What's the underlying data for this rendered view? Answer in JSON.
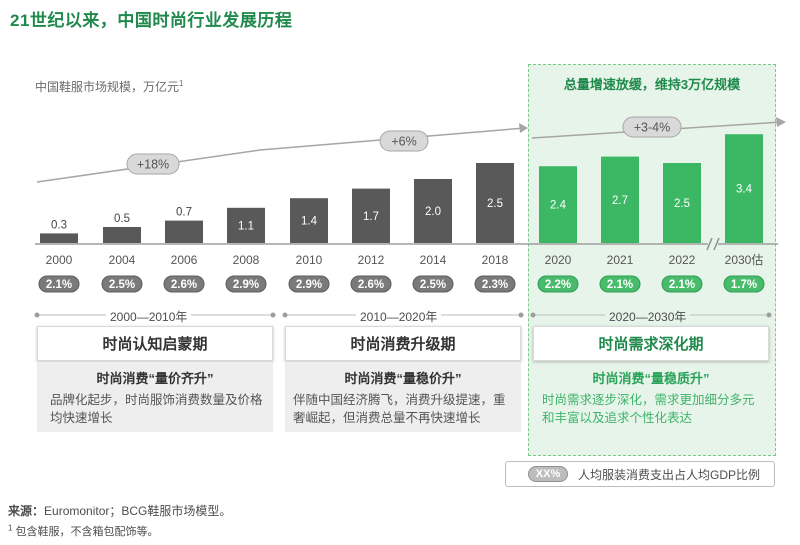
{
  "title": "21世纪以来，中国时尚行业发展历程",
  "colors": {
    "grey_bar": "#595959",
    "green_bar": "#3cb864",
    "grey_pill": "#7a7a7a",
    "green_pill": "#49bc6c",
    "accent_green": "#1f8a4c",
    "panel_bg": "#e7f4e9"
  },
  "chart_data": {
    "type": "bar",
    "ylabel": "中国鞋服市场规模，万亿元",
    "ylabel_footnote_marker": "1",
    "categories": [
      "2000",
      "2004",
      "2006",
      "2008",
      "2010",
      "2012",
      "2014",
      "2018",
      "2020",
      "2021",
      "2022",
      "2030估"
    ],
    "values": [
      0.3,
      0.5,
      0.7,
      1.1,
      1.4,
      1.7,
      2.0,
      2.5,
      2.4,
      2.7,
      2.5,
      3.4
    ],
    "value_labels": [
      "0.3",
      "0.5",
      "0.7",
      "1.1",
      "1.4",
      "1.7",
      "2.0",
      "2.5",
      "2.4",
      "2.7",
      "2.5",
      "3.4"
    ],
    "highlight_from_index": 8,
    "axis_break_before_index": 11,
    "gdp_share": [
      "2.1%",
      "2.5%",
      "2.6%",
      "2.9%",
      "2.9%",
      "2.6%",
      "2.5%",
      "2.3%",
      "2.2%",
      "2.1%",
      "2.1%",
      "1.7%"
    ],
    "growth_annotations": [
      {
        "label": "+18%",
        "from_index": 0,
        "to_index": 3
      },
      {
        "label": "+6%",
        "from_index": 4,
        "to_index": 7
      },
      {
        "label": "+3-4%",
        "from_index": 8,
        "to_index": 11
      }
    ]
  },
  "eras": [
    {
      "period": "2000—2010年",
      "name": "时尚认知启蒙期",
      "subtitle": "时尚消费“量价齐升”",
      "description": "品牌化起步，时尚服饰消费数量及价格均快速增长"
    },
    {
      "period": "2010—2020年",
      "name": "时尚消费升级期",
      "subtitle": "时尚消费“量稳价升”",
      "description": "伴随中国经济腾飞，消费升级提速，重奢崛起，但消费总量不再快速增长"
    },
    {
      "period": "2020—2030年",
      "name": "时尚需求深化期",
      "subtitle": "时尚消费“量稳质升”",
      "description": "时尚需求逐步深化，需求更加细分多元和丰富以及追求个性化表达"
    }
  ],
  "panel_heading": "总量增速放缓，维持3万亿规模",
  "legend": {
    "pill_text": "XX%",
    "text": "人均服装消费支出占人均GDP比例"
  },
  "source": {
    "label": "来源：",
    "text": "Euromonitor；BCG鞋服市场模型。"
  },
  "footnote": {
    "marker": "1",
    "text": "包含鞋服，不含箱包配饰等。"
  }
}
